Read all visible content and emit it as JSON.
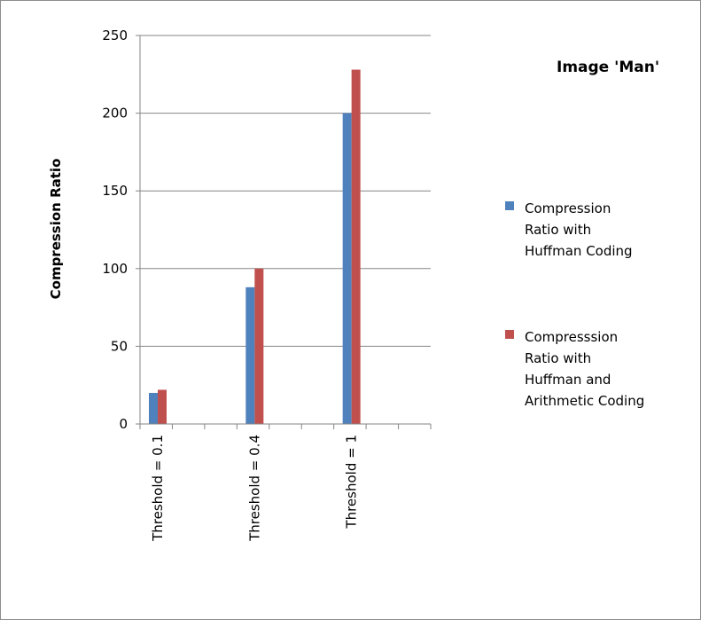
{
  "chart_data": {
    "type": "bar",
    "title": "Image 'Man'",
    "xlabel": "",
    "ylabel": "Compression Ratio",
    "ylim": [
      0,
      250
    ],
    "yticks": [
      0,
      50,
      100,
      150,
      200,
      250
    ],
    "grid": true,
    "legend_position": "right",
    "categories": [
      "Threshold = 0.1",
      "Threshold = 0.4",
      "Threshold = 1"
    ],
    "series": [
      {
        "name": "Compression Ratio with Huffman Coding",
        "legend_lines": [
          "Compression",
          "Ratio with",
          "Huffman Coding"
        ],
        "color": "#4f81bd",
        "values": [
          20,
          88,
          200
        ]
      },
      {
        "name": "Compresssion Ratio with Huffman and Arithmetic Coding",
        "legend_lines": [
          "Compresssion",
          "Ratio with",
          "Huffman and",
          "Arithmetic Coding"
        ],
        "color": "#c0504d",
        "values": [
          22,
          100,
          228
        ]
      }
    ]
  }
}
